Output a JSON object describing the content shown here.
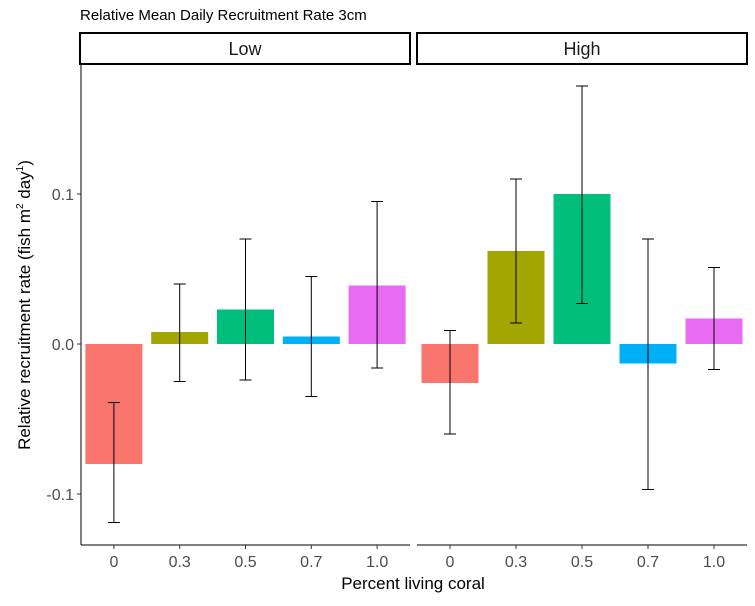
{
  "chart_data": {
    "type": "bar",
    "title": "Relative Mean Daily Recruitment Rate 3cm",
    "xlabel": "Percent living coral",
    "ylabel": {
      "prefix": "Relative recruitment rate (fish m",
      "sup1": "2",
      "mid": " day",
      "sup2": "1",
      "suffix": ")"
    },
    "ylim": [
      -0.135,
      0.19
    ],
    "yticks": [
      {
        "value": 0.1,
        "label": "0.1"
      },
      {
        "value": 0.0,
        "label": "0.0"
      },
      {
        "value": -0.1,
        "label": "-0.1"
      }
    ],
    "categories": [
      "0",
      "0.3",
      "0.5",
      "0.7",
      "1.0"
    ],
    "colors": [
      "#F8766D",
      "#A3A500",
      "#00BF7D",
      "#00B0F6",
      "#E76BF3"
    ],
    "grid": false,
    "legend": "none",
    "facets": [
      {
        "label": "Low",
        "values": [
          -0.08,
          0.008,
          0.023,
          0.005,
          0.039
        ],
        "err_low": [
          -0.119,
          -0.025,
          -0.024,
          -0.035,
          -0.016
        ],
        "err_high": [
          -0.039,
          0.04,
          0.07,
          0.045,
          0.095
        ]
      },
      {
        "label": "High",
        "values": [
          -0.026,
          0.062,
          0.1,
          -0.013,
          0.017
        ],
        "err_low": [
          -0.06,
          0.014,
          0.027,
          -0.097,
          -0.017
        ],
        "err_high": [
          0.009,
          0.11,
          0.172,
          0.07,
          0.051
        ]
      }
    ]
  }
}
